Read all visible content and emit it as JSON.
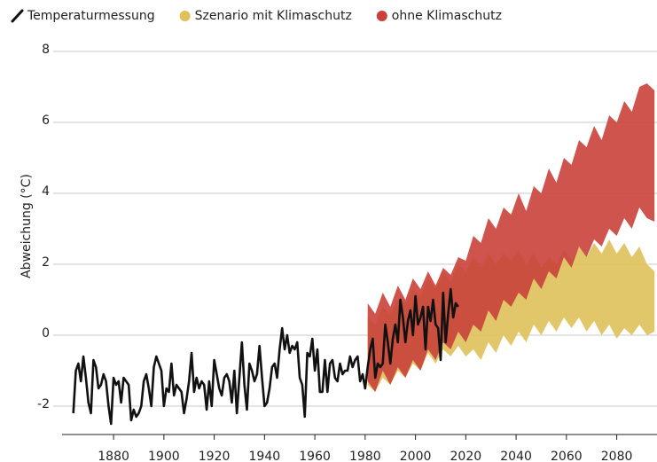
{
  "chart_data": {
    "type": "line",
    "ylabel": "Abweichung (°C)",
    "xlim": [
      1856,
      2096
    ],
    "xticks": [
      1880,
      1900,
      1920,
      1940,
      1960,
      1980,
      2000,
      2020,
      2040,
      2060,
      2080
    ],
    "ylim": [
      -2.8,
      8.2
    ],
    "yticks": [
      -2,
      0,
      2,
      4,
      6,
      8
    ],
    "grid": true,
    "series": [
      {
        "name": "Szenario mit Klimaschutz",
        "color": "#dfc05a",
        "type": "band",
        "x": [
          1981,
          1984,
          1987,
          1990,
          1993,
          1996,
          1999,
          2002,
          2005,
          2008,
          2011,
          2014,
          2017,
          2020,
          2023,
          2026,
          2029,
          2032,
          2035,
          2038,
          2041,
          2044,
          2047,
          2050,
          2053,
          2056,
          2059,
          2062,
          2065,
          2068,
          2071,
          2074,
          2077,
          2080,
          2083,
          2086,
          2089,
          2092,
          2095
        ],
        "upper": [
          0.5,
          0.3,
          0.8,
          0.6,
          1.0,
          0.9,
          1.3,
          1.1,
          1.6,
          1.3,
          1.8,
          1.5,
          2.0,
          1.8,
          2.2,
          1.9,
          2.3,
          2.0,
          2.3,
          2.1,
          2.4,
          2.0,
          2.3,
          1.9,
          2.2,
          2.0,
          2.4,
          2.1,
          2.5,
          2.2,
          2.6,
          2.3,
          2.7,
          2.3,
          2.6,
          2.2,
          2.5,
          2.0,
          1.8
        ],
        "lower": [
          -1.4,
          -1.6,
          -1.2,
          -1.4,
          -1.0,
          -1.2,
          -0.8,
          -1.0,
          -0.5,
          -0.8,
          -0.4,
          -0.6,
          -0.3,
          -0.6,
          -0.4,
          -0.7,
          -0.2,
          -0.5,
          0.0,
          -0.3,
          0.1,
          -0.2,
          0.3,
          0.0,
          0.4,
          0.1,
          0.5,
          0.2,
          0.5,
          0.1,
          0.4,
          0.0,
          0.3,
          -0.1,
          0.2,
          0.0,
          0.3,
          0.0,
          0.1
        ]
      },
      {
        "name": "ohne Klimaschutz",
        "color": "#c9413a",
        "type": "band",
        "x": [
          1981,
          1984,
          1987,
          1990,
          1993,
          1996,
          1999,
          2002,
          2005,
          2008,
          2011,
          2014,
          2017,
          2020,
          2023,
          2026,
          2029,
          2032,
          2035,
          2038,
          2041,
          2044,
          2047,
          2050,
          2053,
          2056,
          2059,
          2062,
          2065,
          2068,
          2071,
          2074,
          2077,
          2080,
          2083,
          2086,
          2089,
          2092,
          2095
        ],
        "upper": [
          0.9,
          0.6,
          1.2,
          0.8,
          1.4,
          1.0,
          1.6,
          1.3,
          1.8,
          1.4,
          1.9,
          1.7,
          2.2,
          2.1,
          2.8,
          2.6,
          3.3,
          3.0,
          3.6,
          3.4,
          4.0,
          3.5,
          4.2,
          4.0,
          4.7,
          4.3,
          5.0,
          4.8,
          5.5,
          5.3,
          5.9,
          5.5,
          6.2,
          6.0,
          6.6,
          6.3,
          7.0,
          7.1,
          6.9
        ],
        "lower": [
          -1.3,
          -1.6,
          -1.0,
          -1.4,
          -0.9,
          -1.2,
          -0.7,
          -1.0,
          -0.4,
          -0.7,
          -0.2,
          -0.4,
          0.1,
          -0.2,
          0.3,
          0.1,
          0.7,
          0.4,
          1.0,
          0.8,
          1.2,
          1.0,
          1.6,
          1.3,
          1.8,
          1.6,
          2.2,
          1.9,
          2.5,
          2.2,
          2.7,
          2.5,
          3.0,
          2.8,
          3.3,
          3.0,
          3.6,
          3.3,
          3.2
        ]
      },
      {
        "name": "Temperaturmessung",
        "color": "#111111",
        "type": "line",
        "x": [
          1864,
          1865,
          1866,
          1867,
          1868,
          1869,
          1870,
          1871,
          1872,
          1873,
          1874,
          1875,
          1876,
          1877,
          1878,
          1879,
          1880,
          1881,
          1882,
          1883,
          1884,
          1885,
          1886,
          1887,
          1888,
          1889,
          1890,
          1891,
          1892,
          1893,
          1894,
          1895,
          1896,
          1897,
          1898,
          1899,
          1900,
          1901,
          1902,
          1903,
          1904,
          1905,
          1906,
          1907,
          1908,
          1909,
          1910,
          1911,
          1912,
          1913,
          1914,
          1915,
          1916,
          1917,
          1918,
          1919,
          1920,
          1921,
          1922,
          1923,
          1924,
          1925,
          1926,
          1927,
          1928,
          1929,
          1930,
          1931,
          1932,
          1933,
          1934,
          1935,
          1936,
          1937,
          1938,
          1939,
          1940,
          1941,
          1942,
          1943,
          1944,
          1945,
          1946,
          1947,
          1948,
          1949,
          1950,
          1951,
          1952,
          1953,
          1954,
          1955,
          1956,
          1957,
          1958,
          1959,
          1960,
          1961,
          1962,
          1963,
          1964,
          1965,
          1966,
          1967,
          1968,
          1969,
          1970,
          1971,
          1972,
          1973,
          1974,
          1975,
          1976,
          1977,
          1978,
          1979,
          1980,
          1981,
          1982,
          1983,
          1984,
          1985,
          1986,
          1987,
          1988,
          1989,
          1990,
          1991,
          1992,
          1993,
          1994,
          1995,
          1996,
          1997,
          1998,
          1999,
          2000,
          2001,
          2002,
          2003,
          2004,
          2005,
          2006,
          2007,
          2008,
          2009,
          2010,
          2011,
          2012,
          2013,
          2014,
          2015,
          2016,
          2017
        ],
        "values": [
          -2.2,
          -1.0,
          -0.8,
          -1.3,
          -0.6,
          -1.2,
          -1.9,
          -2.2,
          -0.7,
          -0.9,
          -1.5,
          -1.4,
          -1.1,
          -1.3,
          -2.0,
          -2.5,
          -1.2,
          -1.4,
          -1.3,
          -1.9,
          -1.2,
          -1.3,
          -1.4,
          -2.4,
          -2.1,
          -2.3,
          -2.2,
          -2.0,
          -1.3,
          -1.1,
          -1.5,
          -2.0,
          -0.9,
          -0.6,
          -0.8,
          -1.0,
          -2.0,
          -1.5,
          -1.6,
          -0.8,
          -1.7,
          -1.4,
          -1.5,
          -1.6,
          -2.2,
          -1.8,
          -1.3,
          -0.5,
          -1.6,
          -1.2,
          -1.5,
          -1.3,
          -1.4,
          -2.1,
          -1.3,
          -2.0,
          -0.7,
          -1.1,
          -1.5,
          -1.7,
          -1.2,
          -1.1,
          -1.3,
          -1.9,
          -1.0,
          -2.2,
          -1.2,
          -0.2,
          -1.4,
          -2.1,
          -0.8,
          -1.0,
          -1.3,
          -1.1,
          -0.3,
          -1.2,
          -2.0,
          -1.9,
          -1.5,
          -0.9,
          -0.8,
          -1.2,
          -0.4,
          0.2,
          -0.4,
          0.0,
          -0.5,
          -0.3,
          -0.4,
          -0.2,
          -1.2,
          -1.4,
          -2.3,
          -0.5,
          -0.6,
          -0.1,
          -1.0,
          -0.4,
          -1.6,
          -1.6,
          -0.7,
          -1.6,
          -0.8,
          -0.7,
          -1.2,
          -1.3,
          -0.8,
          -1.1,
          -1.0,
          -1.0,
          -0.6,
          -0.9,
          -0.7,
          -0.6,
          -1.3,
          -1.1,
          -1.5,
          -0.9,
          -0.4,
          -0.1,
          -1.2,
          -0.8,
          -0.9,
          -0.8,
          0.3,
          -0.2,
          -0.8,
          -0.1,
          0.3,
          -0.2,
          1.0,
          0.5,
          -0.2,
          0.4,
          0.7,
          0.0,
          1.1,
          0.3,
          0.5,
          0.8,
          -0.4,
          0.8,
          0.4,
          1.0,
          0.3,
          0.2,
          -0.7,
          1.2,
          -0.2,
          0.6,
          1.3,
          0.5,
          0.9,
          0.8
        ]
      }
    ],
    "legend_order": [
      2,
      0,
      1
    ]
  }
}
